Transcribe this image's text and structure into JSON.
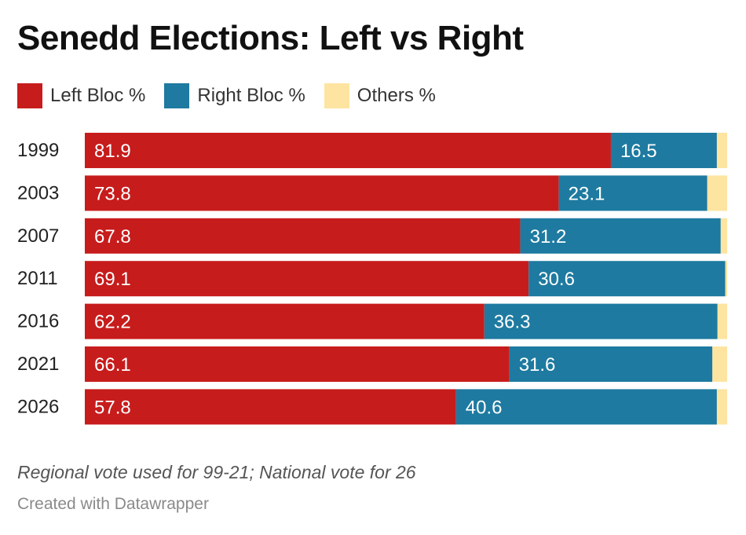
{
  "chart_data": {
    "type": "bar",
    "orientation": "horizontal",
    "stacked": true,
    "title": "Senedd Elections: Left vs Right",
    "categories": [
      "1999",
      "2003",
      "2007",
      "2011",
      "2016",
      "2021",
      "2026"
    ],
    "series": [
      {
        "name": "Left Bloc %",
        "color": "#c71c1c",
        "values": [
          81.9,
          73.8,
          67.8,
          69.1,
          62.2,
          66.1,
          57.8
        ]
      },
      {
        "name": "Right Bloc %",
        "color": "#1e7aa0",
        "values": [
          16.5,
          23.1,
          31.2,
          30.6,
          36.3,
          31.6,
          40.6
        ]
      },
      {
        "name": "Others %",
        "color": "#fde4a0",
        "values": [
          1.6,
          3.1,
          1.0,
          0.3,
          1.5,
          2.3,
          1.6
        ]
      }
    ],
    "xlim": [
      0,
      100
    ],
    "grid": false,
    "legend": "top-left"
  },
  "footnote": "Regional vote used for 99-21; National vote for 26",
  "credit": "Created with Datawrapper"
}
